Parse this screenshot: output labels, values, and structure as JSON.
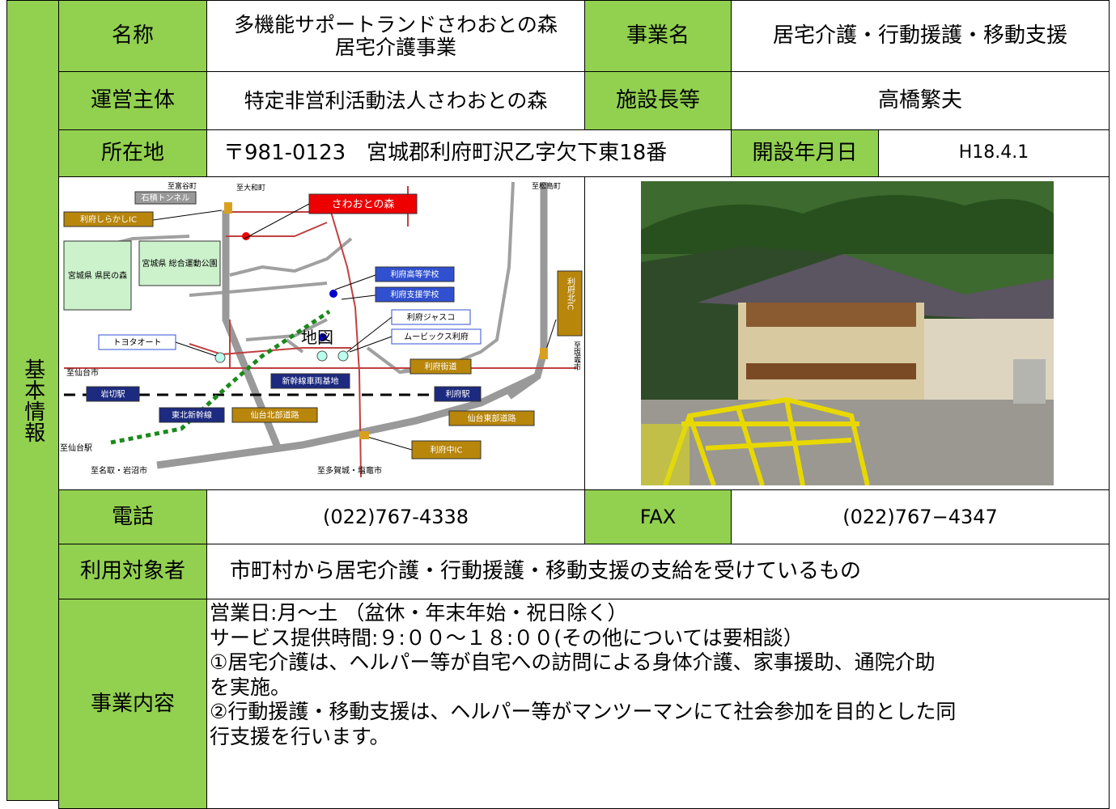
{
  "section_label": "基本情報",
  "rows": {
    "name": {
      "label": "名称",
      "value": [
        "多機能サポートランドさわおとの森",
        "居宅介護事業"
      ],
      "label2": "事業名",
      "value2": "居宅介護・行動援護・移動支援"
    },
    "operator": {
      "label": "運営主体",
      "value": "特定非営利活動法人さわおとの森",
      "label2": "施設長等",
      "value2": "高橋繁夫"
    },
    "address": {
      "label": "所在地",
      "value": "〒981-0123　宮城郡利府町沢乙字欠下東18番",
      "label2": "開設年月日",
      "value2": "H18.4.1"
    },
    "phone": {
      "label": "電話",
      "value": "(022)767-4338",
      "label2": "FAX",
      "value2": "(022)767−4347"
    },
    "users": {
      "label": "利用対象者",
      "value": "市町村から居宅介護・行動援護・移動支援の支給を受けているもの"
    },
    "content": {
      "label": "事業内容",
      "lines": [
        "営業日:月～土 （盆休・年末年始・祝日除く）",
        "サービス提供時間:９:００～１８:００(その他については要相談）",
        "①居宅介護は、ヘルパー等が自宅への訪問による身体介護、家事援助、通院介助",
        "を実施。",
        "②行動援護・移動支援は、ヘルパー等がマンツーマンにて社会参加を目的とした同",
        "行支援を行います。"
      ]
    }
  },
  "map": {
    "labels": [
      "至富谷町",
      "石積トンネル",
      "至大和町",
      "至松島町",
      "さわおとの森",
      "利府しらかしIC",
      "宮城県 県民の森",
      "宮城県 総合運動公園",
      "利府高等学校",
      "利府支援学校",
      "利府ジャスコ",
      "ムービックス利府",
      "地図",
      "トヨタオート",
      "利府北IC",
      "至塩竈市",
      "至仙台市",
      "利府街道",
      "新幹線車両基地",
      "岩切駅",
      "利府駅",
      "東北新幹線",
      "仙台北部道路",
      "仙台東部道路",
      "至仙台駅",
      "利府中IC",
      "至名取・岩沼市",
      "至多賀城・塩竈市"
    ]
  }
}
